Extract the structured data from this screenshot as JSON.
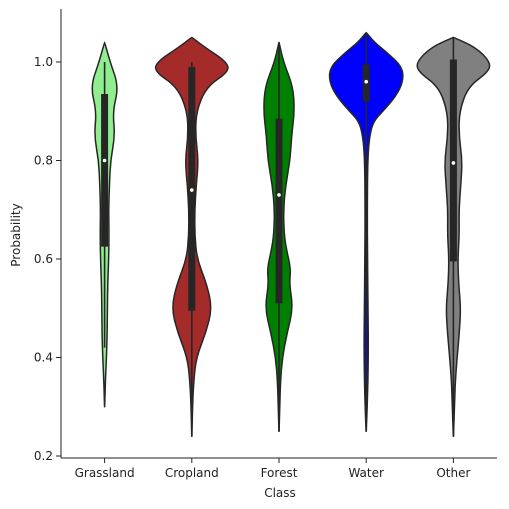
{
  "chart_data": {
    "type": "violin",
    "title": "",
    "xlabel": "Class",
    "ylabel": "Probability",
    "ylim": [
      0.2,
      1.1
    ],
    "yticks": [
      "0.2",
      "0.4",
      "0.6",
      "0.8",
      "1.0"
    ],
    "categories": [
      "Grassland",
      "Cropland",
      "Forest",
      "Water",
      "Other"
    ],
    "colors": [
      "#90ee90",
      "#a52a2a",
      "#008000",
      "#0000ff",
      "#808080"
    ],
    "grid": false,
    "legend": "none",
    "series": [
      {
        "category": "Grassland",
        "min": 0.3,
        "q1": 0.625,
        "median": 0.8,
        "q3": 0.935,
        "whisker_low": 0.42,
        "whisker_high": 1.0,
        "max": 1.04,
        "density": [
          [
            0.3,
            0.002
          ],
          [
            0.35,
            0.02
          ],
          [
            0.4,
            0.05
          ],
          [
            0.45,
            0.07
          ],
          [
            0.5,
            0.075
          ],
          [
            0.55,
            0.085
          ],
          [
            0.6,
            0.11
          ],
          [
            0.65,
            0.12
          ],
          [
            0.7,
            0.11
          ],
          [
            0.75,
            0.13
          ],
          [
            0.8,
            0.16
          ],
          [
            0.85,
            0.28
          ],
          [
            0.9,
            0.22
          ],
          [
            0.95,
            0.38
          ],
          [
            1.0,
            0.15
          ],
          [
            1.04,
            0.002
          ]
        ]
      },
      {
        "category": "Cropland",
        "min": 0.24,
        "q1": 0.495,
        "median": 0.74,
        "q3": 0.99,
        "whisker_low": 0.24,
        "whisker_high": 1.0,
        "max": 1.05,
        "density": [
          [
            0.24,
            0.002
          ],
          [
            0.3,
            0.02
          ],
          [
            0.35,
            0.05
          ],
          [
            0.4,
            0.12
          ],
          [
            0.45,
            0.38
          ],
          [
            0.5,
            0.55
          ],
          [
            0.55,
            0.4
          ],
          [
            0.6,
            0.14
          ],
          [
            0.65,
            0.08
          ],
          [
            0.7,
            0.08
          ],
          [
            0.75,
            0.12
          ],
          [
            0.8,
            0.18
          ],
          [
            0.85,
            0.1
          ],
          [
            0.9,
            0.12
          ],
          [
            0.95,
            0.4
          ],
          [
            0.98,
            1.0
          ],
          [
            1.0,
            0.95
          ],
          [
            1.03,
            0.35
          ],
          [
            1.05,
            0.002
          ]
        ]
      },
      {
        "category": "Forest",
        "min": 0.25,
        "q1": 0.51,
        "median": 0.73,
        "q3": 0.885,
        "whisker_low": 0.25,
        "whisker_high": 1.04,
        "max": 1.04,
        "density": [
          [
            0.25,
            0.002
          ],
          [
            0.3,
            0.02
          ],
          [
            0.35,
            0.04
          ],
          [
            0.4,
            0.09
          ],
          [
            0.45,
            0.22
          ],
          [
            0.5,
            0.38
          ],
          [
            0.55,
            0.28
          ],
          [
            0.58,
            0.32
          ],
          [
            0.62,
            0.2
          ],
          [
            0.65,
            0.14
          ],
          [
            0.7,
            0.12
          ],
          [
            0.75,
            0.18
          ],
          [
            0.8,
            0.3
          ],
          [
            0.85,
            0.34
          ],
          [
            0.9,
            0.42
          ],
          [
            0.95,
            0.38
          ],
          [
            1.0,
            0.12
          ],
          [
            1.04,
            0.002
          ]
        ]
      },
      {
        "category": "Water",
        "min": 0.25,
        "q1": 0.92,
        "median": 0.96,
        "q3": 0.995,
        "whisker_low": 0.25,
        "whisker_high": 1.06,
        "max": 1.06,
        "density": [
          [
            0.25,
            0.002
          ],
          [
            0.3,
            0.03
          ],
          [
            0.4,
            0.06
          ],
          [
            0.5,
            0.05
          ],
          [
            0.6,
            0.035
          ],
          [
            0.7,
            0.03
          ],
          [
            0.8,
            0.04
          ],
          [
            0.85,
            0.09
          ],
          [
            0.88,
            0.2
          ],
          [
            0.9,
            0.45
          ],
          [
            0.93,
            0.8
          ],
          [
            0.96,
            1.0
          ],
          [
            0.99,
            0.98
          ],
          [
            1.02,
            0.55
          ],
          [
            1.04,
            0.22
          ],
          [
            1.06,
            0.002
          ]
        ]
      },
      {
        "category": "Other",
        "min": 0.24,
        "q1": 0.595,
        "median": 0.795,
        "q3": 1.005,
        "whisker_low": 0.24,
        "whisker_high": 1.05,
        "max": 1.05,
        "density": [
          [
            0.24,
            0.002
          ],
          [
            0.3,
            0.03
          ],
          [
            0.35,
            0.05
          ],
          [
            0.4,
            0.1
          ],
          [
            0.45,
            0.16
          ],
          [
            0.5,
            0.2
          ],
          [
            0.55,
            0.14
          ],
          [
            0.6,
            0.12
          ],
          [
            0.65,
            0.16
          ],
          [
            0.7,
            0.15
          ],
          [
            0.75,
            0.2
          ],
          [
            0.8,
            0.24
          ],
          [
            0.85,
            0.15
          ],
          [
            0.9,
            0.16
          ],
          [
            0.95,
            0.4
          ],
          [
            0.98,
            0.95
          ],
          [
            1.0,
            1.0
          ],
          [
            1.03,
            0.6
          ],
          [
            1.05,
            0.002
          ]
        ]
      }
    ]
  }
}
